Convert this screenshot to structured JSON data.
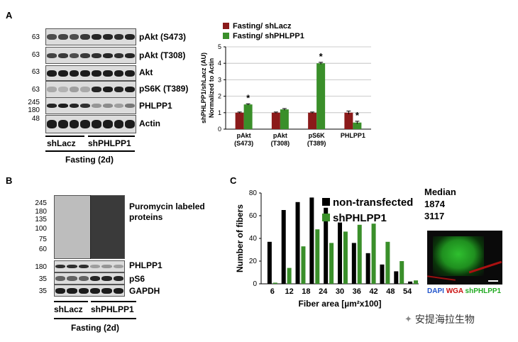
{
  "panels": {
    "A": {
      "letter": "A",
      "mw_markers": [
        "63",
        "63",
        "63",
        "63",
        "245",
        "180",
        "48"
      ],
      "blot_labels": [
        "pAkt (S473)",
        "pAkt (T308)",
        "Akt",
        "pS6K (T389)",
        "PHLPP1",
        "Actin"
      ],
      "groups": [
        "shLacz",
        "shPHLPP1"
      ],
      "condition": "Fasting (2d)"
    },
    "B": {
      "letter": "B",
      "mw_markers": [
        "245",
        "180",
        "135",
        "100",
        "75",
        "60",
        "180",
        "35",
        "35"
      ],
      "blot_labels": [
        "Puromycin labeled proteins",
        "PHLPP1",
        "pS6",
        "GAPDH"
      ],
      "groups": [
        "shLacz",
        "shPHLPP1"
      ],
      "condition": "Fasting (2d)"
    },
    "C": {
      "letter": "C",
      "median_title": "Median",
      "median_values": [
        "1874",
        "3117"
      ],
      "micrograph_legend": [
        "DAPI",
        "WGA",
        "shPHLPP1"
      ]
    }
  },
  "watermark": "安提海拉生物",
  "colors": {
    "red_series": "#8b1a1a",
    "green_series": "#3a8f2a",
    "black_series": "#000000",
    "dapi": "#2255cc",
    "wga": "#cc1111",
    "gfp": "#22aa22"
  },
  "chart_data": [
    {
      "type": "bar",
      "ylabel": "shPHLPP1/shLacz (AU) Normalized to Actin",
      "categories": [
        "pAkt (S473)",
        "pAkt (T308)",
        "pS6K (T389)",
        "PHLPP1"
      ],
      "category_lines": [
        [
          "pAkt",
          "(S473)"
        ],
        [
          "pAkt",
          "(T308)"
        ],
        [
          "pS6K",
          "(T389)"
        ],
        [
          "PHLPP1",
          ""
        ]
      ],
      "series": [
        {
          "name": "Fasting/ shLacz",
          "values": [
            1.0,
            1.0,
            1.0,
            1.0
          ],
          "errors": [
            0.04,
            0.04,
            0.04,
            0.1
          ]
        },
        {
          "name": "Fasting/ shPHLPP1",
          "values": [
            1.5,
            1.2,
            4.0,
            0.4
          ],
          "errors": [
            0.04,
            0.05,
            0.06,
            0.08
          ]
        }
      ],
      "significance": [
        "*",
        "",
        "*",
        "*"
      ],
      "ylim": [
        0,
        5
      ],
      "yticks": [
        0,
        1,
        2,
        3,
        4,
        5
      ],
      "grid": true,
      "legend": "top-left"
    },
    {
      "type": "bar",
      "xlabel": "Fiber area [µm²x100]",
      "ylabel": "Number of fibers",
      "xticks": [
        6,
        12,
        18,
        24,
        30,
        36,
        42,
        48,
        54
      ],
      "ylim": [
        0,
        80
      ],
      "yticks": [
        0,
        20,
        40,
        60,
        80
      ],
      "series": [
        {
          "name": "non-transfected",
          "x": [
            5,
            10,
            15,
            20,
            25,
            30,
            35,
            40,
            45,
            50,
            55
          ],
          "values": [
            37,
            65,
            72,
            76,
            67,
            54,
            36,
            27,
            17,
            11,
            2
          ]
        },
        {
          "name": "shPHLPP1",
          "x": [
            7,
            12,
            17,
            22,
            27,
            32,
            37,
            42,
            47,
            52,
            57
          ],
          "values": [
            1,
            14,
            33,
            48,
            36,
            46,
            52,
            53,
            37,
            20,
            3
          ]
        }
      ],
      "legend": "top-right"
    }
  ]
}
